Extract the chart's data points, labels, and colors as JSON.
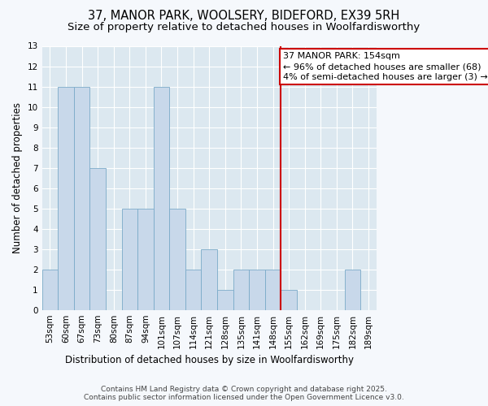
{
  "title_line1": "37, MANOR PARK, WOOLSERY, BIDEFORD, EX39 5RH",
  "title_line2": "Size of property relative to detached houses in Woolfardisworthy",
  "xlabel": "Distribution of detached houses by size in Woolfardisworthy",
  "ylabel": "Number of detached properties",
  "categories": [
    "53sqm",
    "60sqm",
    "67sqm",
    "73sqm",
    "80sqm",
    "87sqm",
    "94sqm",
    "101sqm",
    "107sqm",
    "114sqm",
    "121sqm",
    "128sqm",
    "135sqm",
    "141sqm",
    "148sqm",
    "155sqm",
    "162sqm",
    "169sqm",
    "175sqm",
    "182sqm",
    "189sqm"
  ],
  "values": [
    2,
    11,
    11,
    7,
    0,
    5,
    5,
    11,
    5,
    2,
    3,
    1,
    2,
    2,
    2,
    1,
    0,
    0,
    0,
    2,
    0
  ],
  "bar_color": "#c8d8ea",
  "bar_edge_color": "#7aaac8",
  "vline_x_idx": 15,
  "vline_color": "#cc0000",
  "annotation_text": "37 MANOR PARK: 154sqm\n← 96% of detached houses are smaller (68)\n4% of semi-detached houses are larger (3) →",
  "annotation_box_color": "#cc0000",
  "ylim": [
    0,
    13
  ],
  "yticks": [
    0,
    1,
    2,
    3,
    4,
    5,
    6,
    7,
    8,
    9,
    10,
    11,
    12,
    13
  ],
  "fig_bg": "#f5f8fc",
  "plot_bg": "#dce8f0",
  "grid_color": "#ffffff",
  "title_fontsize": 10.5,
  "subtitle_fontsize": 9.5,
  "axis_label_fontsize": 8.5,
  "tick_fontsize": 7.5,
  "annotation_fontsize": 8,
  "footnote_fontsize": 6.5
}
